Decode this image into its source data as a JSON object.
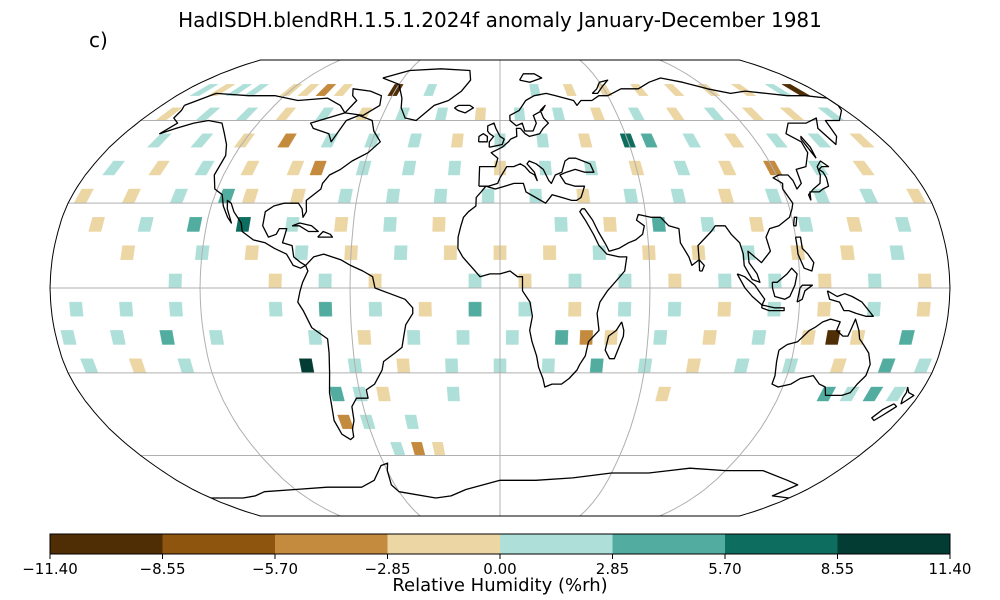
{
  "title": "HadISDH.blendRH.1.5.1.2024f anomaly January-December 1981",
  "panel_label": "c)",
  "colorbar": {
    "label": "Relative Humidity (%rh)",
    "tick_labels": [
      "−11.40",
      "−8.55",
      "−5.70",
      "−2.85",
      "0.00",
      "2.85",
      "5.70",
      "8.55",
      "11.40"
    ],
    "colors": [
      "#4f2d05",
      "#8e550f",
      "#c48a3e",
      "#ebd6a4",
      "#aee0d9",
      "#52ada0",
      "#0d6d5e",
      "#023c33"
    ]
  },
  "map": {
    "projection": "Robinson",
    "variable": "relative humidity anomaly",
    "land_color": "#ffffff",
    "coastline_color": "#000000",
    "gridline_color": "#b0b0b0",
    "cells": [
      {
        "lon": -170,
        "lat": 72.5,
        "c": 4
      },
      {
        "lon": -160,
        "lat": 72.5,
        "c": 3
      },
      {
        "lon": -150,
        "lat": 72.5,
        "c": 4
      },
      {
        "lon": -140,
        "lat": 72.5,
        "c": 4
      },
      {
        "lon": -120,
        "lat": 72.5,
        "c": 3
      },
      {
        "lon": -110,
        "lat": 72.5,
        "c": 3
      },
      {
        "lon": -100,
        "lat": 72.5,
        "c": 2
      },
      {
        "lon": -90,
        "lat": 72.5,
        "c": 3
      },
      {
        "lon": -60,
        "lat": 72.5,
        "c": 0
      },
      {
        "lon": -40,
        "lat": 72.5,
        "c": 4
      },
      {
        "lon": 20,
        "lat": 72.5,
        "c": 4
      },
      {
        "lon": 40,
        "lat": 72.5,
        "c": 3
      },
      {
        "lon": 60,
        "lat": 72.5,
        "c": 3
      },
      {
        "lon": 80,
        "lat": 72.5,
        "c": 3
      },
      {
        "lon": 100,
        "lat": 72.5,
        "c": 3
      },
      {
        "lon": 120,
        "lat": 72.5,
        "c": 3
      },
      {
        "lon": 140,
        "lat": 72.5,
        "c": 3
      },
      {
        "lon": 160,
        "lat": 72.5,
        "c": 4
      },
      {
        "lon": 170,
        "lat": 72.5,
        "c": 0
      },
      {
        "lon": -170,
        "lat": 62.5,
        "c": 3
      },
      {
        "lon": -150,
        "lat": 62.5,
        "c": 4
      },
      {
        "lon": -130,
        "lat": 62.5,
        "c": 4
      },
      {
        "lon": -110,
        "lat": 62.5,
        "c": 3
      },
      {
        "lon": -90,
        "lat": 62.5,
        "c": 4
      },
      {
        "lon": -70,
        "lat": 62.5,
        "c": 3
      },
      {
        "lon": -50,
        "lat": 62.5,
        "c": 4
      },
      {
        "lon": -30,
        "lat": 62.5,
        "c": 4
      },
      {
        "lon": -10,
        "lat": 62.5,
        "c": 3
      },
      {
        "lon": 10,
        "lat": 62.5,
        "c": 4
      },
      {
        "lon": 30,
        "lat": 62.5,
        "c": 4
      },
      {
        "lon": 50,
        "lat": 62.5,
        "c": 3
      },
      {
        "lon": 70,
        "lat": 62.5,
        "c": 4
      },
      {
        "lon": 90,
        "lat": 62.5,
        "c": 3
      },
      {
        "lon": 110,
        "lat": 62.5,
        "c": 4
      },
      {
        "lon": 130,
        "lat": 62.5,
        "c": 3
      },
      {
        "lon": 150,
        "lat": 62.5,
        "c": 3
      },
      {
        "lon": 170,
        "lat": 62.5,
        "c": 4
      },
      {
        "lon": -160,
        "lat": 52.5,
        "c": 4
      },
      {
        "lon": -140,
        "lat": 52.5,
        "c": 4
      },
      {
        "lon": -120,
        "lat": 52.5,
        "c": 3
      },
      {
        "lon": -100,
        "lat": 52.5,
        "c": 2
      },
      {
        "lon": -80,
        "lat": 52.5,
        "c": 4
      },
      {
        "lon": -60,
        "lat": 52.5,
        "c": 4
      },
      {
        "lon": -40,
        "lat": 52.5,
        "c": 4
      },
      {
        "lon": -20,
        "lat": 52.5,
        "c": 3
      },
      {
        "lon": 0,
        "lat": 52.5,
        "c": 4
      },
      {
        "lon": 20,
        "lat": 52.5,
        "c": 4
      },
      {
        "lon": 40,
        "lat": 52.5,
        "c": 3
      },
      {
        "lon": 60,
        "lat": 52.5,
        "c": 6
      },
      {
        "lon": 70,
        "lat": 52.5,
        "c": 5
      },
      {
        "lon": 90,
        "lat": 52.5,
        "c": 4
      },
      {
        "lon": 110,
        "lat": 52.5,
        "c": 3
      },
      {
        "lon": 130,
        "lat": 52.5,
        "c": 4
      },
      {
        "lon": 150,
        "lat": 52.5,
        "c": 4
      },
      {
        "lon": 170,
        "lat": 52.5,
        "c": 3
      },
      {
        "lon": -170,
        "lat": 42.5,
        "c": 4
      },
      {
        "lon": -150,
        "lat": 42.5,
        "c": 3
      },
      {
        "lon": -130,
        "lat": 42.5,
        "c": 4
      },
      {
        "lon": -110,
        "lat": 42.5,
        "c": 3
      },
      {
        "lon": -90,
        "lat": 42.5,
        "c": 3
      },
      {
        "lon": -80,
        "lat": 42.5,
        "c": 2
      },
      {
        "lon": -60,
        "lat": 42.5,
        "c": 4
      },
      {
        "lon": -40,
        "lat": 42.5,
        "c": 4
      },
      {
        "lon": -20,
        "lat": 42.5,
        "c": 4
      },
      {
        "lon": 0,
        "lat": 42.5,
        "c": 3
      },
      {
        "lon": 20,
        "lat": 42.5,
        "c": 4
      },
      {
        "lon": 40,
        "lat": 42.5,
        "c": 4
      },
      {
        "lon": 60,
        "lat": 42.5,
        "c": 3
      },
      {
        "lon": 80,
        "lat": 42.5,
        "c": 4
      },
      {
        "lon": 100,
        "lat": 42.5,
        "c": 3
      },
      {
        "lon": 120,
        "lat": 42.5,
        "c": 2
      },
      {
        "lon": 140,
        "lat": 42.5,
        "c": 4
      },
      {
        "lon": 160,
        "lat": 42.5,
        "c": 3
      },
      {
        "lon": -175,
        "lat": 32.5,
        "c": 3
      },
      {
        "lon": -155,
        "lat": 32.5,
        "c": 3
      },
      {
        "lon": -135,
        "lat": 32.5,
        "c": 4
      },
      {
        "lon": -115,
        "lat": 32.5,
        "c": 5
      },
      {
        "lon": -105,
        "lat": 32.5,
        "c": 3
      },
      {
        "lon": -85,
        "lat": 32.5,
        "c": 3
      },
      {
        "lon": -65,
        "lat": 32.5,
        "c": 4
      },
      {
        "lon": -45,
        "lat": 32.5,
        "c": 4
      },
      {
        "lon": -25,
        "lat": 32.5,
        "c": 4
      },
      {
        "lon": -5,
        "lat": 32.5,
        "c": 4
      },
      {
        "lon": 15,
        "lat": 32.5,
        "c": 4
      },
      {
        "lon": 35,
        "lat": 32.5,
        "c": 3
      },
      {
        "lon": 55,
        "lat": 32.5,
        "c": 4
      },
      {
        "lon": 75,
        "lat": 32.5,
        "c": 4
      },
      {
        "lon": 95,
        "lat": 32.5,
        "c": 3
      },
      {
        "lon": 115,
        "lat": 32.5,
        "c": 4
      },
      {
        "lon": 135,
        "lat": 32.5,
        "c": 4
      },
      {
        "lon": 155,
        "lat": 32.5,
        "c": 4
      },
      {
        "lon": 175,
        "lat": 32.5,
        "c": 3
      },
      {
        "lon": -165,
        "lat": 22.5,
        "c": 3
      },
      {
        "lon": -145,
        "lat": 22.5,
        "c": 4
      },
      {
        "lon": -125,
        "lat": 22.5,
        "c": 5
      },
      {
        "lon": -105,
        "lat": 22.5,
        "c": 6
      },
      {
        "lon": -85,
        "lat": 22.5,
        "c": 4
      },
      {
        "lon": -65,
        "lat": 22.5,
        "c": 3
      },
      {
        "lon": -45,
        "lat": 22.5,
        "c": 4
      },
      {
        "lon": -25,
        "lat": 22.5,
        "c": 3
      },
      {
        "lon": 25,
        "lat": 22.5,
        "c": 4
      },
      {
        "lon": 45,
        "lat": 22.5,
        "c": 3
      },
      {
        "lon": 65,
        "lat": 22.5,
        "c": 5
      },
      {
        "lon": 85,
        "lat": 22.5,
        "c": 4
      },
      {
        "lon": 105,
        "lat": 22.5,
        "c": 3
      },
      {
        "lon": 125,
        "lat": 22.5,
        "c": 4
      },
      {
        "lon": 145,
        "lat": 22.5,
        "c": 3
      },
      {
        "lon": 165,
        "lat": 22.5,
        "c": 4
      },
      {
        "lon": -150,
        "lat": 12.5,
        "c": 3
      },
      {
        "lon": -120,
        "lat": 12.5,
        "c": 4
      },
      {
        "lon": -100,
        "lat": 12.5,
        "c": 3
      },
      {
        "lon": -80,
        "lat": 12.5,
        "c": 4
      },
      {
        "lon": -60,
        "lat": 12.5,
        "c": 3
      },
      {
        "lon": -40,
        "lat": 12.5,
        "c": 4
      },
      {
        "lon": -20,
        "lat": 12.5,
        "c": 3
      },
      {
        "lon": 0,
        "lat": 12.5,
        "c": 3
      },
      {
        "lon": 20,
        "lat": 12.5,
        "c": 3
      },
      {
        "lon": 40,
        "lat": 12.5,
        "c": 4
      },
      {
        "lon": 60,
        "lat": 12.5,
        "c": 3
      },
      {
        "lon": 80,
        "lat": 12.5,
        "c": 3
      },
      {
        "lon": 100,
        "lat": 12.5,
        "c": 4
      },
      {
        "lon": 120,
        "lat": 12.5,
        "c": 3
      },
      {
        "lon": 140,
        "lat": 12.5,
        "c": 3
      },
      {
        "lon": 160,
        "lat": 12.5,
        "c": 4
      },
      {
        "lon": -130,
        "lat": 2.5,
        "c": 4
      },
      {
        "lon": -90,
        "lat": 2.5,
        "c": 3
      },
      {
        "lon": -70,
        "lat": 2.5,
        "c": 4
      },
      {
        "lon": -50,
        "lat": 2.5,
        "c": 3
      },
      {
        "lon": -10,
        "lat": 2.5,
        "c": 4
      },
      {
        "lon": 10,
        "lat": 2.5,
        "c": 3
      },
      {
        "lon": 30,
        "lat": 2.5,
        "c": 4
      },
      {
        "lon": 50,
        "lat": 2.5,
        "c": 4
      },
      {
        "lon": 70,
        "lat": 2.5,
        "c": 3
      },
      {
        "lon": 90,
        "lat": 2.5,
        "c": 4
      },
      {
        "lon": 110,
        "lat": 2.5,
        "c": 4
      },
      {
        "lon": 130,
        "lat": 2.5,
        "c": 3
      },
      {
        "lon": 150,
        "lat": 2.5,
        "c": 4
      },
      {
        "lon": 170,
        "lat": 2.5,
        "c": 3
      },
      {
        "lon": -170,
        "lat": -7.5,
        "c": 4
      },
      {
        "lon": -150,
        "lat": -7.5,
        "c": 4
      },
      {
        "lon": -130,
        "lat": -7.5,
        "c": 4
      },
      {
        "lon": -90,
        "lat": -7.5,
        "c": 4
      },
      {
        "lon": -70,
        "lat": -7.5,
        "c": 5
      },
      {
        "lon": -50,
        "lat": -7.5,
        "c": 4
      },
      {
        "lon": -30,
        "lat": -7.5,
        "c": 3
      },
      {
        "lon": -10,
        "lat": -7.5,
        "c": 5
      },
      {
        "lon": 10,
        "lat": -7.5,
        "c": 4
      },
      {
        "lon": 30,
        "lat": -7.5,
        "c": 3
      },
      {
        "lon": 50,
        "lat": -7.5,
        "c": 4
      },
      {
        "lon": 70,
        "lat": -7.5,
        "c": 4
      },
      {
        "lon": 90,
        "lat": -7.5,
        "c": 3
      },
      {
        "lon": 110,
        "lat": -7.5,
        "c": 4
      },
      {
        "lon": 130,
        "lat": -7.5,
        "c": 3
      },
      {
        "lon": 150,
        "lat": -7.5,
        "c": 4
      },
      {
        "lon": 170,
        "lat": -7.5,
        "c": 3
      },
      {
        "lon": -175,
        "lat": -17.5,
        "c": 4
      },
      {
        "lon": -155,
        "lat": -17.5,
        "c": 4
      },
      {
        "lon": -135,
        "lat": -17.5,
        "c": 5
      },
      {
        "lon": -115,
        "lat": -17.5,
        "c": 4
      },
      {
        "lon": -75,
        "lat": -17.5,
        "c": 4
      },
      {
        "lon": -55,
        "lat": -17.5,
        "c": 3
      },
      {
        "lon": -35,
        "lat": -17.5,
        "c": 4
      },
      {
        "lon": -15,
        "lat": -17.5,
        "c": 4
      },
      {
        "lon": 5,
        "lat": -17.5,
        "c": 4
      },
      {
        "lon": 25,
        "lat": -17.5,
        "c": 5
      },
      {
        "lon": 35,
        "lat": -17.5,
        "c": 2
      },
      {
        "lon": 45,
        "lat": -17.5,
        "c": 3
      },
      {
        "lon": 65,
        "lat": -17.5,
        "c": 4
      },
      {
        "lon": 85,
        "lat": -17.5,
        "c": 3
      },
      {
        "lon": 105,
        "lat": -17.5,
        "c": 4
      },
      {
        "lon": 125,
        "lat": -17.5,
        "c": 3
      },
      {
        "lon": 135,
        "lat": -17.5,
        "c": 0
      },
      {
        "lon": 145,
        "lat": -17.5,
        "c": 3
      },
      {
        "lon": 165,
        "lat": -17.5,
        "c": 5
      },
      {
        "lon": -170,
        "lat": -27.5,
        "c": 4
      },
      {
        "lon": -150,
        "lat": -27.5,
        "c": 3
      },
      {
        "lon": -130,
        "lat": -27.5,
        "c": 4
      },
      {
        "lon": -80,
        "lat": -27.5,
        "c": 7
      },
      {
        "lon": -60,
        "lat": -27.5,
        "c": 4
      },
      {
        "lon": -40,
        "lat": -27.5,
        "c": 3
      },
      {
        "lon": -20,
        "lat": -27.5,
        "c": 4
      },
      {
        "lon": 0,
        "lat": -27.5,
        "c": 4
      },
      {
        "lon": 20,
        "lat": -27.5,
        "c": 4
      },
      {
        "lon": 40,
        "lat": -27.5,
        "c": 5
      },
      {
        "lon": 60,
        "lat": -27.5,
        "c": 4
      },
      {
        "lon": 80,
        "lat": -27.5,
        "c": 3
      },
      {
        "lon": 100,
        "lat": -27.5,
        "c": 4
      },
      {
        "lon": 120,
        "lat": -27.5,
        "c": 4
      },
      {
        "lon": 140,
        "lat": -27.5,
        "c": 3
      },
      {
        "lon": 160,
        "lat": -27.5,
        "c": 5
      },
      {
        "lon": 175,
        "lat": -27.5,
        "c": 4
      },
      {
        "lon": -70,
        "lat": -37.5,
        "c": 5
      },
      {
        "lon": -60,
        "lat": -37.5,
        "c": 4
      },
      {
        "lon": -50,
        "lat": -37.5,
        "c": 3
      },
      {
        "lon": -20,
        "lat": -37.5,
        "c": 4
      },
      {
        "lon": 70,
        "lat": -37.5,
        "c": 3
      },
      {
        "lon": 140,
        "lat": -37.5,
        "c": 5
      },
      {
        "lon": 150,
        "lat": -37.5,
        "c": 4
      },
      {
        "lon": 160,
        "lat": -37.5,
        "c": 5
      },
      {
        "lon": 170,
        "lat": -37.5,
        "c": 4
      },
      {
        "lon": -70,
        "lat": -47.5,
        "c": 2
      },
      {
        "lon": -60,
        "lat": -47.5,
        "c": 4
      },
      {
        "lon": -40,
        "lat": -47.5,
        "c": 4
      },
      {
        "lon": -50,
        "lat": -57.5,
        "c": 4
      },
      {
        "lon": -40,
        "lat": -57.5,
        "c": 2
      },
      {
        "lon": -30,
        "lat": -57.5,
        "c": 3
      }
    ]
  }
}
